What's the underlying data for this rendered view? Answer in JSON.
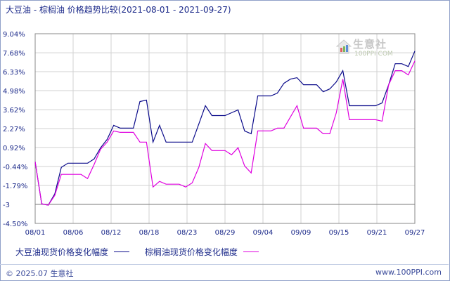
{
  "title": "大豆油 - 棕榈油 价格趋势比较(2021-08-01 - 2021-09-27)",
  "colors": {
    "series1": "#0a0a8a",
    "series2": "#e000e0",
    "grid": "#d2d2d2",
    "axis": "#8a8a8a"
  },
  "watermark": {
    "name": "生意社",
    "sub": "100PPI.COM"
  },
  "chart_data": {
    "type": "line",
    "title": "大豆油 - 棕榈油 价格趋势比较(2021-08-01 - 2021-09-27)",
    "xlabel": "",
    "ylabel": "",
    "x_ticks": [
      "08/01",
      "08/06",
      "08/12",
      "08/18",
      "08/23",
      "08/29",
      "09/04",
      "09/09",
      "09/15",
      "09/21",
      "09/27"
    ],
    "y_ticks": [
      "9.04%",
      "7.68%",
      "6.33%",
      "4.98%",
      "3.62%",
      "2.27%",
      "0.92%",
      "-0.44%",
      "-1.79%",
      "-3",
      "-4.50%"
    ],
    "y_tick_values": [
      9.04,
      7.68,
      6.33,
      4.98,
      3.62,
      2.27,
      0.92,
      -0.44,
      -1.79,
      -3.14,
      -4.5
    ],
    "ylim": [
      -4.5,
      9.04
    ],
    "xlim": [
      0,
      57
    ],
    "grid": true,
    "series": [
      {
        "name": "大豆油现货价格变化幅度",
        "color": "#0a0a8a",
        "points": [
          [
            0,
            -0.1
          ],
          [
            1,
            -3.1
          ],
          [
            2,
            -3.2
          ],
          [
            3,
            -2.4
          ],
          [
            4,
            -0.5
          ],
          [
            5,
            -0.2
          ],
          [
            6,
            -0.2
          ],
          [
            7,
            -0.2
          ],
          [
            8,
            -0.2
          ],
          [
            9,
            0.1
          ],
          [
            10,
            0.9
          ],
          [
            11,
            1.5
          ],
          [
            12,
            2.5
          ],
          [
            13,
            2.3
          ],
          [
            14,
            2.3
          ],
          [
            15,
            2.3
          ],
          [
            16,
            4.2
          ],
          [
            17,
            4.3
          ],
          [
            18,
            1.3
          ],
          [
            19,
            2.5
          ],
          [
            20,
            1.3
          ],
          [
            21,
            1.3
          ],
          [
            22,
            1.3
          ],
          [
            23,
            1.3
          ],
          [
            24,
            1.3
          ],
          [
            25,
            2.6
          ],
          [
            26,
            3.9
          ],
          [
            27,
            3.2
          ],
          [
            28,
            3.2
          ],
          [
            29,
            3.2
          ],
          [
            30,
            3.4
          ],
          [
            31,
            3.6
          ],
          [
            32,
            2.1
          ],
          [
            33,
            1.9
          ],
          [
            34,
            4.6
          ],
          [
            35,
            4.6
          ],
          [
            36,
            4.6
          ],
          [
            37,
            4.8
          ],
          [
            38,
            5.5
          ],
          [
            39,
            5.8
          ],
          [
            40,
            5.9
          ],
          [
            41,
            5.4
          ],
          [
            42,
            5.4
          ],
          [
            43,
            5.4
          ],
          [
            44,
            4.9
          ],
          [
            45,
            5.1
          ],
          [
            46,
            5.6
          ],
          [
            47,
            6.4
          ],
          [
            48,
            3.9
          ],
          [
            49,
            3.9
          ],
          [
            50,
            3.9
          ],
          [
            51,
            3.9
          ],
          [
            52,
            3.9
          ],
          [
            53,
            4.1
          ],
          [
            54,
            5.4
          ],
          [
            55,
            6.9
          ],
          [
            56,
            6.9
          ],
          [
            57,
            6.7
          ],
          [
            58,
            7.8
          ]
        ]
      },
      {
        "name": "棕榈油现货价格变化幅度",
        "color": "#e000e0",
        "points": [
          [
            0,
            -0.1
          ],
          [
            1,
            -3.1
          ],
          [
            2,
            -3.2
          ],
          [
            3,
            -2.5
          ],
          [
            4,
            -1.0
          ],
          [
            5,
            -1.0
          ],
          [
            6,
            -1.0
          ],
          [
            7,
            -1.0
          ],
          [
            8,
            -1.3
          ],
          [
            9,
            -0.3
          ],
          [
            10,
            0.8
          ],
          [
            11,
            1.3
          ],
          [
            12,
            2.1
          ],
          [
            13,
            2.0
          ],
          [
            14,
            2.0
          ],
          [
            15,
            2.0
          ],
          [
            16,
            1.3
          ],
          [
            17,
            1.3
          ],
          [
            18,
            -1.9
          ],
          [
            19,
            -1.5
          ],
          [
            20,
            -1.7
          ],
          [
            21,
            -1.7
          ],
          [
            22,
            -1.7
          ],
          [
            23,
            -1.9
          ],
          [
            24,
            -1.6
          ],
          [
            25,
            -0.5
          ],
          [
            26,
            1.2
          ],
          [
            27,
            0.7
          ],
          [
            28,
            0.7
          ],
          [
            29,
            0.7
          ],
          [
            30,
            0.4
          ],
          [
            31,
            0.9
          ],
          [
            32,
            -0.4
          ],
          [
            33,
            -0.9
          ],
          [
            34,
            2.1
          ],
          [
            35,
            2.1
          ],
          [
            36,
            2.1
          ],
          [
            37,
            2.3
          ],
          [
            38,
            2.3
          ],
          [
            39,
            3.1
          ],
          [
            40,
            3.9
          ],
          [
            41,
            2.3
          ],
          [
            42,
            2.3
          ],
          [
            43,
            2.3
          ],
          [
            44,
            1.9
          ],
          [
            45,
            1.9
          ],
          [
            46,
            3.4
          ],
          [
            47,
            5.8
          ],
          [
            48,
            2.9
          ],
          [
            49,
            2.9
          ],
          [
            50,
            2.9
          ],
          [
            51,
            2.9
          ],
          [
            52,
            2.9
          ],
          [
            53,
            2.8
          ],
          [
            54,
            5.4
          ],
          [
            55,
            6.4
          ],
          [
            56,
            6.4
          ],
          [
            57,
            6.1
          ],
          [
            58,
            7.1
          ]
        ]
      }
    ]
  },
  "legend": [
    {
      "label": "大豆油现货价格变化幅度",
      "color": "#0a0a8a"
    },
    {
      "label": "棕榈油现货价格变化幅度",
      "color": "#e000e0"
    }
  ],
  "footer": {
    "copyright": "© 2025.07 生意社",
    "site": "www.100PPI.com"
  }
}
